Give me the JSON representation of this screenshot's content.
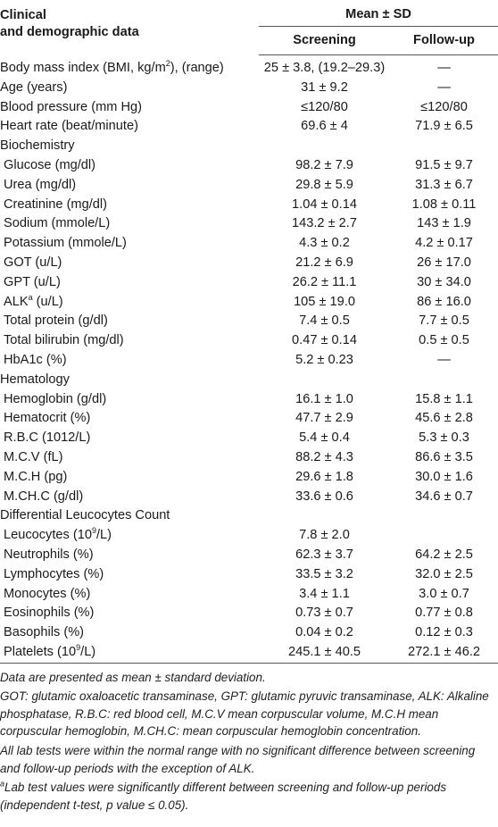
{
  "header": {
    "col1_line1": "Clinical",
    "col1_line2": "and demographic data",
    "group": "Mean ± SD",
    "screening": "Screening",
    "followup": "Follow-up"
  },
  "rows": [
    {
      "label": "Body mass index (BMI, kg/m",
      "sup": "2",
      "label_tail": "), (range)",
      "screening": "25 ± 3.8, (19.2–29.3)",
      "followup": "—",
      "indent": false
    },
    {
      "label": "Age (years)",
      "screening": "31 ± 9.2",
      "followup": "—",
      "indent": false
    },
    {
      "label": "Blood pressure (mm Hg)",
      "screening": "≤120/80",
      "followup": "≤120/80",
      "indent": false
    },
    {
      "label": "Heart rate (beat/minute)",
      "screening": "69.6 ± 4",
      "followup": "71.9 ± 6.5",
      "indent": false
    },
    {
      "label": "Biochemistry",
      "screening": "",
      "followup": "",
      "indent": false
    },
    {
      "label": "Glucose (mg/dl)",
      "screening": "98.2 ± 7.9",
      "followup": "91.5 ± 9.7",
      "indent": true
    },
    {
      "label": "Urea (mg/dl)",
      "screening": "29.8 ± 5.9",
      "followup": "31.3 ± 6.7",
      "indent": true
    },
    {
      "label": "Creatinine (mg/dl)",
      "screening": "1.04 ± 0.14",
      "followup": "1.08 ± 0.11",
      "indent": true
    },
    {
      "label": "Sodium (mmole/L)",
      "screening": "143.2 ± 2.7",
      "followup": "143 ± 1.9",
      "indent": true
    },
    {
      "label": "Potassium (mmole/L)",
      "screening": "4.3 ± 0.2",
      "followup": "4.2 ± 0.17",
      "indent": true
    },
    {
      "label": "GOT (u/L)",
      "screening": "21.2 ± 6.9",
      "followup": "26 ± 17.0",
      "indent": true
    },
    {
      "label": "GPT (u/L)",
      "screening": "26.2 ± 11.1",
      "followup": "30 ± 34.0",
      "indent": true
    },
    {
      "label": "ALK",
      "sup": "a",
      "label_tail": " (u/L)",
      "screening": "105 ± 19.0",
      "followup": "86 ± 16.0",
      "indent": true
    },
    {
      "label": "Total protein (g/dl)",
      "screening": "7.4 ± 0.5",
      "followup": "7.7 ± 0.5",
      "indent": true
    },
    {
      "label": "Total bilirubin (mg/dl)",
      "screening": "0.47 ± 0.14",
      "followup": "0.5 ± 0.5",
      "indent": true
    },
    {
      "label": "HbA1c (%)",
      "screening": "5.2 ± 0.23",
      "followup": "—",
      "indent": true
    },
    {
      "label": "Hematology",
      "screening": "",
      "followup": "",
      "indent": false
    },
    {
      "label": "Hemoglobin (g/dl)",
      "screening": "16.1 ± 1.0",
      "followup": "15.8 ± 1.1",
      "indent": true
    },
    {
      "label": "Hematocrit (%)",
      "screening": "47.7 ± 2.9",
      "followup": "45.6 ± 2.8",
      "indent": true
    },
    {
      "label": "R.B.C (1012/L)",
      "screening": "5.4 ± 0.4",
      "followup": "5.3 ± 0.3",
      "indent": true
    },
    {
      "label": "M.C.V (fL)",
      "screening": "88.2 ± 4.3",
      "followup": "86.6 ± 3.5",
      "indent": true
    },
    {
      "label": "M.C.H (pg)",
      "screening": "29.6 ± 1.8",
      "followup": "30.0 ± 1.6",
      "indent": true
    },
    {
      "label": "M.CH.C (g/dl)",
      "screening": "33.6 ± 0.6",
      "followup": "34.6 ± 0.7",
      "indent": true
    },
    {
      "label": "Differential Leucocytes Count",
      "screening": "",
      "followup": "",
      "indent": false
    },
    {
      "label": "Leucocytes (10",
      "sup": "9",
      "label_tail": "/L)",
      "screening": "7.8 ± 2.0",
      "followup": "",
      "indent": true
    },
    {
      "label": "Neutrophils (%)",
      "screening": "62.3 ± 3.7",
      "followup": "64.2 ± 2.5",
      "indent": true
    },
    {
      "label": "Lymphocytes (%)",
      "screening": "33.5 ± 3.2",
      "followup": "32.0 ± 2.5",
      "indent": true
    },
    {
      "label": "Monocytes (%)",
      "screening": "3.4 ± 1.1",
      "followup": "3.0 ± 0.7",
      "indent": true
    },
    {
      "label": "Eosinophils (%)",
      "screening": "0.73 ± 0.7",
      "followup": "0.77 ± 0.8",
      "indent": true
    },
    {
      "label": "Basophils (%)",
      "screening": "0.04 ± 0.2",
      "followup": "0.12 ± 0.3",
      "indent": true
    },
    {
      "label": "Platelets (10",
      "sup": "9",
      "label_tail": "/L)",
      "screening": "245.1 ± 40.5",
      "followup": "272.1 ± 46.2",
      "indent": true
    }
  ],
  "notes": {
    "n1": "Data are presented as mean ± standard deviation.",
    "n2": "GOT: glutamic oxaloacetic transaminase, GPT: glutamic pyruvic transaminase, ALK: Alkaline phosphatase, R.B.C: red blood cell, M.C.V mean corpuscular volume, M.C.H mean corpuscular hemoglobin, M.CH.C: mean corpuscular hemoglobin concentration.",
    "n3": "All lab tests were within the normal range with no significant difference between screening and follow-up periods with the exception of ALK.",
    "n4_sup": "a",
    "n4": "Lab test values were significantly different between screening and follow-up periods (independent t-test, p value ≤ 0.05)."
  }
}
